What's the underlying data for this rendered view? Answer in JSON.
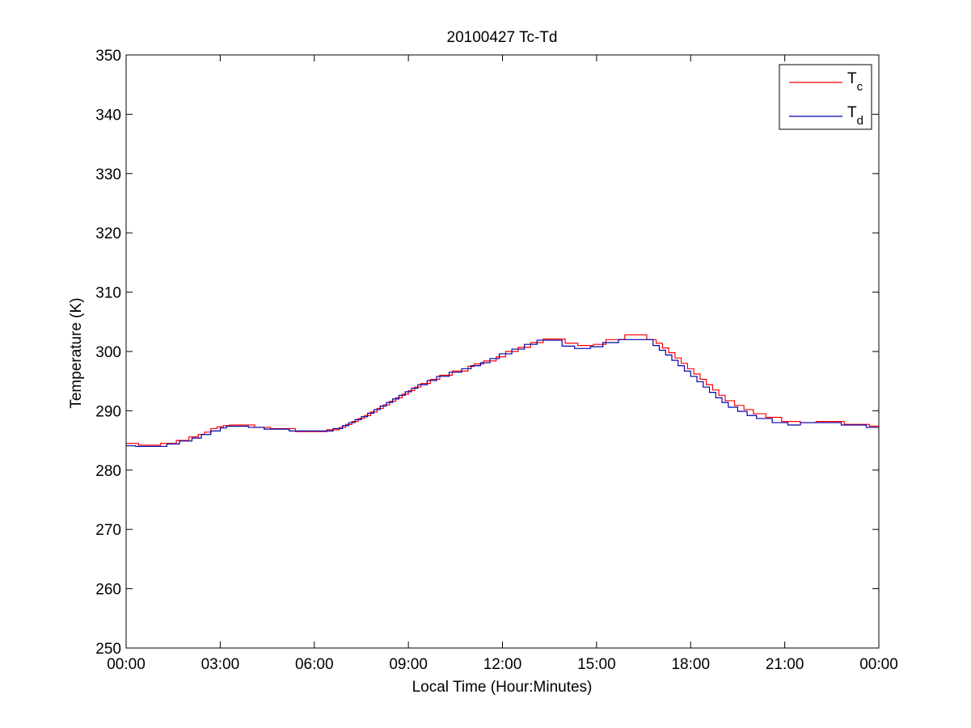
{
  "chart_data": {
    "type": "line",
    "title": "20100427 Tc-Td",
    "xlabel": "Local Time (Hour:Minutes)",
    "ylabel": "Temperature (K)",
    "xlim": [
      0,
      24
    ],
    "ylim": [
      250,
      350
    ],
    "x_ticks": [
      {
        "value": 0,
        "label": "00:00"
      },
      {
        "value": 3,
        "label": "03:00"
      },
      {
        "value": 6,
        "label": "06:00"
      },
      {
        "value": 9,
        "label": "09:00"
      },
      {
        "value": 12,
        "label": "12:00"
      },
      {
        "value": 15,
        "label": "15:00"
      },
      {
        "value": 18,
        "label": "18:00"
      },
      {
        "value": 21,
        "label": "21:00"
      },
      {
        "value": 24,
        "label": "00:00"
      }
    ],
    "y_ticks": [
      {
        "value": 250,
        "label": "250"
      },
      {
        "value": 260,
        "label": "260"
      },
      {
        "value": 270,
        "label": "270"
      },
      {
        "value": 280,
        "label": "280"
      },
      {
        "value": 290,
        "label": "290"
      },
      {
        "value": 300,
        "label": "300"
      },
      {
        "value": 310,
        "label": "310"
      },
      {
        "value": 320,
        "label": "320"
      },
      {
        "value": 330,
        "label": "330"
      },
      {
        "value": 340,
        "label": "340"
      },
      {
        "value": 350,
        "label": "350"
      }
    ],
    "grid": false,
    "legend_position": "top-right",
    "series": [
      {
        "name": "Tc",
        "legend_base": "T",
        "legend_sub": "c",
        "color": "#ff0000",
        "step": true,
        "x": [
          0,
          0.4,
          1.1,
          1.6,
          2.0,
          2.3,
          2.5,
          2.7,
          2.9,
          3.1,
          3.3,
          4.1,
          4.6,
          5.4,
          6.4,
          6.8,
          7.0,
          7.2,
          7.4,
          7.6,
          7.8,
          8.0,
          8.2,
          8.4,
          8.6,
          8.8,
          9.0,
          9.2,
          9.4,
          9.7,
          10.0,
          10.4,
          10.9,
          11.1,
          11.4,
          11.8,
          12.1,
          12.5,
          12.9,
          13.3,
          14.0,
          14.4,
          14.9,
          15.3,
          15.9,
          16.6,
          16.9,
          17.1,
          17.3,
          17.5,
          17.7,
          17.9,
          18.1,
          18.3,
          18.5,
          18.7,
          18.9,
          19.1,
          19.4,
          19.7,
          20.0,
          20.4,
          20.9,
          21.5,
          22.0,
          22.9,
          23.7,
          24.0
        ],
        "y": [
          284.5,
          284.2,
          284.5,
          285.0,
          285.6,
          286.0,
          286.4,
          287.0,
          287.3,
          287.5,
          287.6,
          287.2,
          287.0,
          286.5,
          286.8,
          287.2,
          287.7,
          288.2,
          288.7,
          289.2,
          289.8,
          290.4,
          291.0,
          291.6,
          292.2,
          292.8,
          293.4,
          294.0,
          294.6,
          295.3,
          296.0,
          296.7,
          297.5,
          297.9,
          298.4,
          299.1,
          300.0,
          300.7,
          301.5,
          302.1,
          301.4,
          301.0,
          301.2,
          302.0,
          302.8,
          302.0,
          301.4,
          300.6,
          299.8,
          298.9,
          298.0,
          297.1,
          296.2,
          295.3,
          294.4,
          293.5,
          292.6,
          291.7,
          290.9,
          290.2,
          289.5,
          288.9,
          288.2,
          288.0,
          288.2,
          287.7,
          287.4,
          287.4
        ]
      },
      {
        "name": "Td",
        "legend_base": "T",
        "legend_sub": "d",
        "color": "#0000aa",
        "step": true,
        "x": [
          0,
          0.3,
          1.3,
          1.7,
          2.1,
          2.4,
          2.7,
          3.0,
          3.2,
          3.9,
          4.4,
          5.2,
          6.2,
          6.6,
          6.9,
          7.1,
          7.3,
          7.5,
          7.7,
          7.9,
          8.1,
          8.3,
          8.5,
          8.7,
          8.9,
          9.1,
          9.3,
          9.6,
          9.9,
          10.3,
          10.7,
          11.0,
          11.3,
          11.6,
          11.9,
          12.3,
          12.7,
          13.1,
          13.9,
          14.3,
          14.8,
          15.2,
          15.7,
          16.5,
          16.8,
          17.0,
          17.2,
          17.4,
          17.6,
          17.8,
          18.0,
          18.2,
          18.4,
          18.6,
          18.8,
          19.0,
          19.2,
          19.5,
          19.8,
          20.1,
          20.6,
          21.1,
          21.5,
          22.8,
          23.6,
          24.0
        ],
        "y": [
          284.1,
          284.0,
          284.4,
          284.9,
          285.4,
          286.0,
          286.6,
          287.1,
          287.4,
          287.2,
          286.9,
          286.6,
          286.6,
          287.0,
          287.5,
          288.0,
          288.5,
          289.0,
          289.6,
          290.2,
          290.8,
          291.4,
          292.0,
          292.6,
          293.2,
          293.8,
          294.4,
          295.1,
          295.8,
          296.5,
          297.1,
          297.6,
          298.1,
          298.8,
          299.6,
          300.4,
          301.2,
          301.9,
          300.9,
          300.5,
          300.8,
          301.5,
          302.0,
          302.0,
          301.0,
          300.2,
          299.4,
          298.5,
          297.6,
          296.7,
          295.8,
          294.9,
          294.0,
          293.1,
          292.2,
          291.4,
          290.6,
          289.9,
          289.2,
          288.7,
          288.0,
          287.6,
          288.0,
          287.6,
          287.2,
          287.2
        ]
      }
    ]
  }
}
